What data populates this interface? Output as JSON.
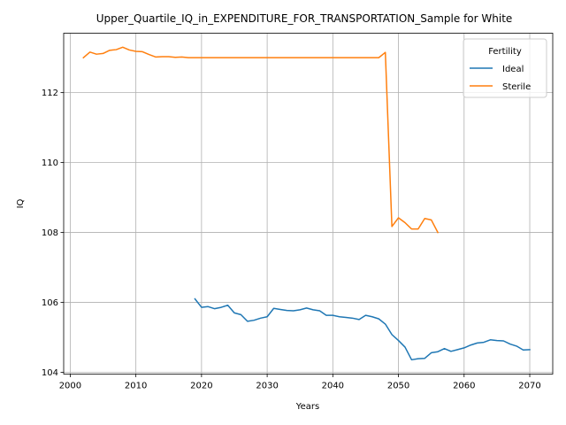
{
  "chart_data": {
    "type": "line",
    "title": "Upper_Quartile_IQ_in_EXPENDITURE_FOR_TRANSPORTATION_Sample for White",
    "xlabel": "Years",
    "ylabel": "IQ",
    "xlim": [
      1999,
      2073.5
    ],
    "ylim": [
      103.95,
      113.7
    ],
    "xticks": [
      2000,
      2010,
      2020,
      2030,
      2040,
      2050,
      2060,
      2070
    ],
    "yticks": [
      104,
      106,
      108,
      110,
      112
    ],
    "grid": true,
    "legend": {
      "title": "Fertility",
      "placement": "top-right"
    },
    "series": [
      {
        "name": "Ideal",
        "color": "#1f77b4",
        "x": [
          2019,
          2020,
          2021,
          2022,
          2023,
          2024,
          2025,
          2026,
          2027,
          2028,
          2029,
          2030,
          2031,
          2032,
          2033,
          2034,
          2035,
          2036,
          2037,
          2038,
          2039,
          2040,
          2041,
          2042,
          2043,
          2044,
          2045,
          2046,
          2047,
          2048,
          2049,
          2050,
          2051,
          2052,
          2053,
          2054,
          2055,
          2056,
          2057,
          2058,
          2059,
          2060,
          2061,
          2062,
          2063,
          2064,
          2065,
          2066,
          2067,
          2068,
          2069,
          2070
        ],
        "y": [
          106.1,
          105.86,
          105.88,
          105.82,
          105.86,
          105.92,
          105.7,
          105.65,
          105.46,
          105.49,
          105.55,
          105.59,
          105.83,
          105.8,
          105.77,
          105.76,
          105.79,
          105.84,
          105.79,
          105.76,
          105.63,
          105.63,
          105.59,
          105.57,
          105.55,
          105.51,
          105.63,
          105.59,
          105.53,
          105.38,
          105.08,
          104.91,
          104.72,
          104.36,
          104.39,
          104.4,
          104.56,
          104.59,
          104.68,
          104.6,
          104.65,
          104.7,
          104.78,
          104.84,
          104.86,
          104.93,
          104.91,
          104.9,
          104.81,
          104.75,
          104.64,
          104.65
        ]
      },
      {
        "name": "Sterile",
        "color": "#ff7f0e",
        "x": [
          2002,
          2003,
          2004,
          2005,
          2006,
          2007,
          2008,
          2009,
          2010,
          2011,
          2012,
          2013,
          2014,
          2015,
          2016,
          2017,
          2018,
          2019,
          2020,
          2021,
          2022,
          2023,
          2024,
          2025,
          2026,
          2027,
          2028,
          2029,
          2030,
          2031,
          2032,
          2033,
          2034,
          2035,
          2036,
          2037,
          2038,
          2039,
          2040,
          2041,
          2042,
          2043,
          2044,
          2045,
          2046,
          2047,
          2048,
          2049,
          2050,
          2051,
          2052,
          2053,
          2054,
          2055,
          2056
        ],
        "y": [
          113.0,
          113.16,
          113.1,
          113.12,
          113.21,
          113.23,
          113.3,
          113.22,
          113.18,
          113.17,
          113.09,
          113.02,
          113.03,
          113.03,
          113.01,
          113.02,
          113.0,
          113.0,
          113.0,
          113.0,
          113.0,
          113.0,
          113.0,
          113.0,
          113.0,
          113.0,
          113.0,
          113.0,
          113.0,
          113.0,
          113.0,
          113.0,
          113.0,
          113.0,
          113.0,
          113.0,
          113.0,
          113.0,
          113.0,
          113.0,
          113.0,
          113.0,
          113.0,
          113.0,
          113.0,
          113.0,
          113.15,
          108.17,
          108.42,
          108.28,
          108.1,
          108.1,
          108.4,
          108.36,
          108.0
        ]
      }
    ]
  }
}
